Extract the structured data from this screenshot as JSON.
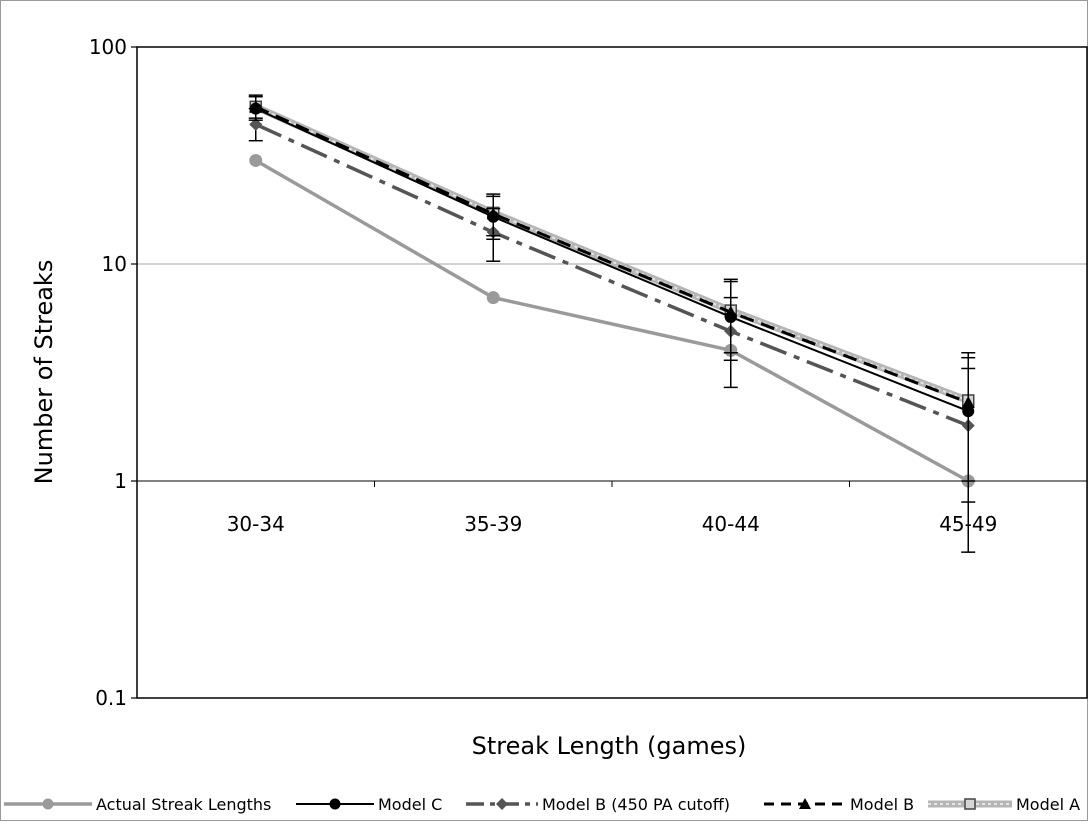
{
  "chart_data": {
    "type": "line",
    "title": "",
    "xlabel": "Streak Length (games)",
    "ylabel": "Number of Streaks",
    "yscale": "log",
    "ylim": [
      0.1,
      100
    ],
    "y_ticks": [
      "100",
      "10",
      "1",
      "0.1"
    ],
    "y_tick_values": [
      100,
      10,
      1,
      0.1
    ],
    "categories": [
      "30-34",
      "35-39",
      "40-44",
      "45-49"
    ],
    "grid": "horizontal",
    "legend_position": "bottom",
    "series": [
      {
        "name": "Actual Streak Lengths",
        "values": [
          30,
          7,
          4,
          1
        ],
        "color": "#9a9a9a",
        "marker": "circle",
        "style": "solid-thick",
        "error": null
      },
      {
        "name": "Model C",
        "values": [
          52,
          16.5,
          5.7,
          2.1
        ],
        "color": "#000000",
        "marker": "circle",
        "style": "solid",
        "error": [
          [
            46,
            59
          ],
          [
            13,
            20.5
          ],
          [
            3.6,
            8.3
          ],
          [
            0.8,
            3.7
          ]
        ]
      },
      {
        "name": "Model B (450 PA cutoff)",
        "values": [
          44,
          14,
          4.9,
          1.8
        ],
        "color": "#555555",
        "marker": "diamond",
        "style": "dashdot",
        "error": [
          [
            37,
            52
          ],
          [
            10.3,
            18
          ],
          [
            2.7,
            7.0
          ],
          [
            0.47,
            3.3
          ]
        ]
      },
      {
        "name": "Model B",
        "values": [
          53,
          17,
          6.0,
          2.3
        ],
        "color": "#000000",
        "marker": "triangle",
        "style": "dashed",
        "error": [
          [
            47,
            60
          ],
          [
            13.5,
            21
          ],
          [
            3.9,
            8.5
          ],
          [
            1.0,
            3.9
          ]
        ]
      },
      {
        "name": "Model A",
        "values": [
          53,
          17.2,
          6.1,
          2.35
        ],
        "color": "#aaaaaa",
        "marker": "square",
        "style": "hatched",
        "error": null
      }
    ]
  }
}
